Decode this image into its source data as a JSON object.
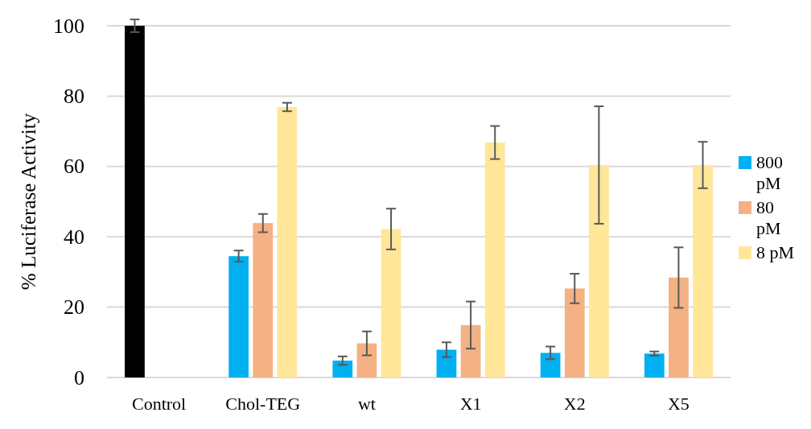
{
  "chart_data": {
    "type": "bar",
    "ylabel": "% Luciferase Activity",
    "categories": [
      "Control",
      "Chol-TEG",
      "wt",
      "X1",
      "X2",
      "X5"
    ],
    "series": [
      {
        "name": "800 pM",
        "color": "#00b0f0",
        "colors": [
          "#000000",
          "#00b0f0",
          "#00b0f0",
          "#00b0f0",
          "#00b0f0",
          "#00b0f0"
        ],
        "values": [
          100,
          34.5,
          4.8,
          7.9,
          7.0,
          6.8
        ],
        "errors": [
          1.8,
          1.6,
          1.2,
          2.1,
          1.8,
          0.6
        ]
      },
      {
        "name": "80 pM",
        "color": "#f4b183",
        "values": [
          null,
          43.9,
          9.7,
          14.9,
          25.3,
          28.4
        ],
        "errors": [
          null,
          2.6,
          3.4,
          6.7,
          4.2,
          8.6
        ]
      },
      {
        "name": "8 pM",
        "color": "#ffe699",
        "values": [
          null,
          76.9,
          42.2,
          66.8,
          60.4,
          60.4
        ],
        "errors": [
          null,
          1.2,
          5.8,
          4.7,
          16.7,
          6.6
        ]
      }
    ],
    "ylim": [
      0,
      100
    ],
    "yticks": [
      0,
      20,
      40,
      60,
      80,
      100
    ],
    "grid": "y",
    "legend": "right"
  }
}
